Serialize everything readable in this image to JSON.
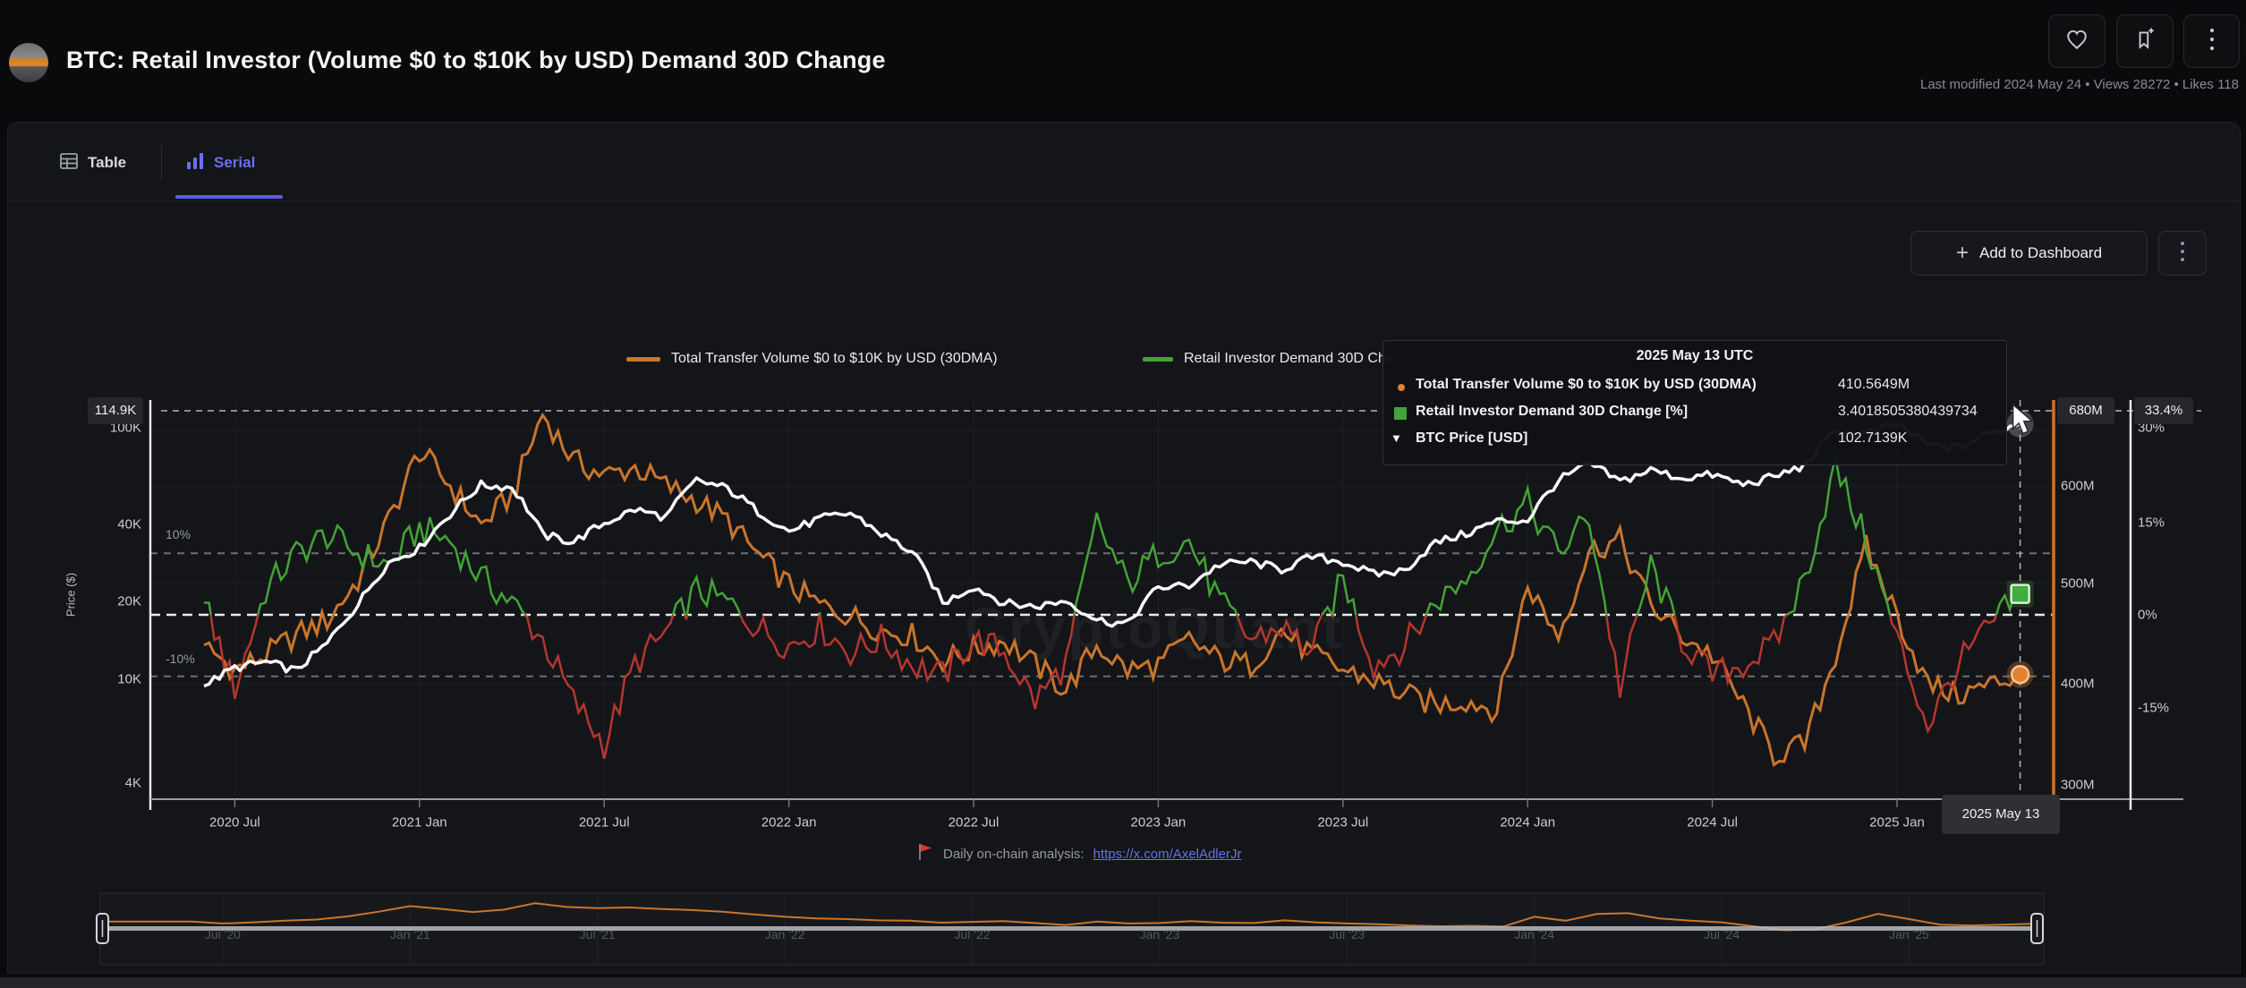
{
  "header": {
    "title": "BTC: Retail Investor (Volume $0 to $10K by USD) Demand 30D Change",
    "meta": "Last modified 2024 May 24 • Views 28272 • Likes 118"
  },
  "tabs": [
    {
      "label": "Table",
      "active": false
    },
    {
      "label": "Serial",
      "active": true
    }
  ],
  "toolbar": {
    "add_to_dashboard_label": "Add to Dashboard"
  },
  "legend": [
    {
      "label": "Total Transfer Volume $0 to $10K by USD (30DMA)",
      "color": "#c9752c"
    },
    {
      "label": "Retail Investor Demand 30D Cha",
      "color": "#43a437"
    }
  ],
  "tooltip": {
    "title": "2025 May 13 UTC",
    "rows": [
      {
        "marker": "dot",
        "color": "#e0832f",
        "name": "Total Transfer Volume $0 to $10K by USD (30DMA)",
        "value": "410.5649M"
      },
      {
        "marker": "square",
        "color": "#43a437",
        "name": "Retail Investor Demand 30D Change [%]",
        "value": "3.4018505380439734"
      },
      {
        "marker": "triangle-down",
        "color": "#ffffff",
        "name": "BTC Price [USD]",
        "value": "102.7139K"
      }
    ]
  },
  "axes": {
    "left": {
      "title": "Price ($)",
      "badge": "114.9K",
      "ticks": [
        "100K",
        "40K",
        "20K",
        "10K",
        "4K"
      ]
    },
    "right_volume": {
      "badge": "680M",
      "ticks": [
        "600M",
        "500M",
        "400M",
        "300M"
      ]
    },
    "right_percent": {
      "badge": "33.4%",
      "ticks": [
        "30%",
        "15%",
        "0%",
        "-15%"
      ]
    },
    "x_ticks": [
      "2020 Jul",
      "2021 Jan",
      "2021 Jul",
      "2022 Jan",
      "2022 Jul",
      "2023 Jan",
      "2023 Jul",
      "2024 Jan",
      "2024 Jul",
      "2025 Jan"
    ],
    "inline_labels": [
      "10%",
      "-10%"
    ]
  },
  "crosshair": {
    "date_badge": "2025 May 13"
  },
  "watermark": "CryptoQuant",
  "footer": {
    "prefix": "Daily on-chain analysis: ",
    "link": "https://x.com/AxelAdlerJr"
  },
  "navigator": {
    "labels": [
      "Jul '20",
      "Jan '21",
      "Jul '21",
      "Jan '22",
      "Jul '22",
      "Jan '23",
      "Jul '23",
      "Jan '24",
      "Jul '24",
      "Jan '25"
    ]
  },
  "colors": {
    "accent": "#5a5ee8",
    "orange": "#c9752c",
    "green": "#43a437",
    "red": "#b5362e",
    "white_line": "#fafafa",
    "card_bg": "#141519",
    "page_bg": "#0a0a0c"
  },
  "chart_data": {
    "type": "line",
    "title": "BTC: Retail Investor (Volume $0 to $10K by USD) Demand 30D Change",
    "x_monthly": [
      "2020-06",
      "2020-07",
      "2020-08",
      "2020-09",
      "2020-10",
      "2020-11",
      "2020-12",
      "2021-01",
      "2021-02",
      "2021-03",
      "2021-04",
      "2021-05",
      "2021-06",
      "2021-07",
      "2021-08",
      "2021-09",
      "2021-10",
      "2021-11",
      "2021-12",
      "2022-01",
      "2022-02",
      "2022-03",
      "2022-04",
      "2022-05",
      "2022-06",
      "2022-07",
      "2022-08",
      "2022-09",
      "2022-10",
      "2022-11",
      "2022-12",
      "2023-01",
      "2023-02",
      "2023-03",
      "2023-04",
      "2023-05",
      "2023-06",
      "2023-07",
      "2023-08",
      "2023-09",
      "2023-10",
      "2023-11",
      "2023-12",
      "2024-01",
      "2024-02",
      "2024-03",
      "2024-04",
      "2024-05",
      "2024-06",
      "2024-07",
      "2024-08",
      "2024-09",
      "2024-10",
      "2024-11",
      "2024-12",
      "2025-01",
      "2025-02",
      "2025-03",
      "2025-04",
      "2025-05"
    ],
    "series": [
      {
        "name": "Total Transfer Volume $0 to $10K by USD (30DMA)",
        "axis": "volume",
        "unit": "M USD",
        "color": "#c9752c",
        "values": [
          440,
          415,
          430,
          450,
          465,
          505,
          565,
          635,
          600,
          560,
          590,
          672,
          625,
          610,
          618,
          600,
          585,
          565,
          530,
          500,
          480,
          470,
          455,
          450,
          425,
          435,
          445,
          420,
          395,
          440,
          415,
          420,
          445,
          425,
          420,
          455,
          430,
          415,
          405,
          390,
          380,
          385,
          375,
          500,
          450,
          535,
          545,
          480,
          450,
          430,
          380,
          330,
          340,
          430,
          538,
          470,
          400,
          390,
          400,
          410.5649
        ]
      },
      {
        "name": "Retail Investor Demand 30D Change [%]",
        "axis": "percent",
        "unit": "%",
        "color_positive": "#43a437",
        "color_negative": "#b5362e",
        "values": [
          2,
          -12,
          4,
          10,
          13,
          10,
          8,
          14,
          12,
          6,
          2,
          -4,
          -14,
          -21,
          -8,
          -3,
          4,
          2,
          -2,
          -5,
          -2,
          -6,
          -4,
          -8,
          -10,
          -4,
          -6,
          -14,
          -8,
          15,
          5,
          10,
          12,
          2,
          -4,
          -2,
          -6,
          6,
          -8,
          -5,
          2,
          6,
          14,
          18,
          10,
          16,
          -12,
          8,
          -4,
          -10,
          -8,
          -5,
          6,
          24,
          12,
          -4,
          -18,
          -8,
          -2,
          3.4018505380439734
        ]
      },
      {
        "name": "BTC Price [USD]",
        "axis": "price_log",
        "unit": "K USD",
        "color": "#fafafa",
        "values": [
          9.4,
          11.1,
          11.7,
          10.8,
          13.8,
          19.7,
          29.0,
          33.1,
          45.2,
          58.8,
          57.7,
          37.3,
          35.0,
          41.5,
          47.1,
          43.8,
          61.3,
          57.0,
          46.2,
          38.5,
          43.2,
          45.5,
          37.7,
          31.8,
          19.9,
          23.3,
          20.0,
          19.4,
          20.5,
          17.2,
          16.5,
          23.1,
          23.5,
          28.5,
          29.2,
          27.2,
          30.5,
          29.2,
          26.0,
          26.9,
          34.7,
          37.7,
          42.3,
          42.6,
          61.2,
          71.3,
          60.6,
          67.5,
          62.7,
          64.6,
          59.0,
          63.3,
          70.2,
          96.4,
          93.4,
          102.4,
          84.4,
          82.5,
          94.2,
          102.7139
        ]
      }
    ],
    "axis_ranges": {
      "price_log_K": [
        4,
        114.9
      ],
      "volume_M": [
        300,
        680
      ],
      "percent_visible": [
        -15,
        33.4
      ]
    },
    "reference_lines_percent": [
      10,
      0,
      -10
    ],
    "legend_position": "top-center",
    "grid": "faint",
    "last_point": {
      "date": "2025 May 13 UTC",
      "volume_M": 410.5649,
      "demand_pct": 3.4018505380439734,
      "price_K": 102.7139
    }
  }
}
